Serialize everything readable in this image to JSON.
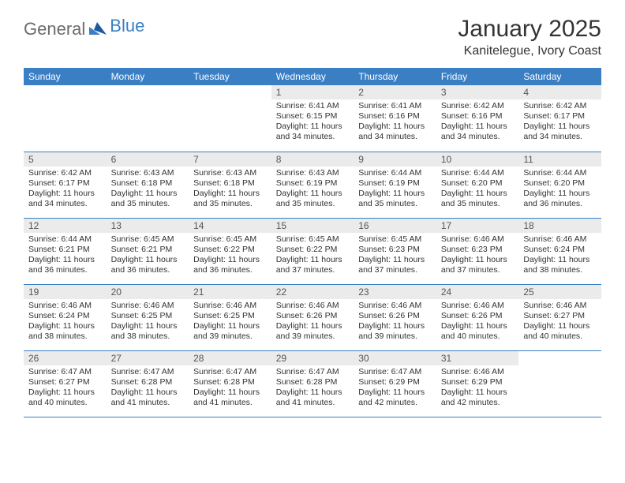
{
  "brand": {
    "text1": "General",
    "text2": "Blue",
    "color_gray": "#6b6b6b",
    "color_blue": "#3a7fc4"
  },
  "header": {
    "month_title": "January 2025",
    "location": "Kanitelegue, Ivory Coast"
  },
  "colors": {
    "header_bg": "#3a7fc4",
    "header_fg": "#ffffff",
    "daynum_bg": "#ebebeb",
    "border": "#3a7fc4",
    "text": "#333333",
    "background": "#ffffff"
  },
  "weekdays": [
    "Sunday",
    "Monday",
    "Tuesday",
    "Wednesday",
    "Thursday",
    "Friday",
    "Saturday"
  ],
  "weeks": [
    [
      null,
      null,
      null,
      {
        "n": "1",
        "sr": "6:41 AM",
        "ss": "6:15 PM",
        "dl": "11 hours and 34 minutes."
      },
      {
        "n": "2",
        "sr": "6:41 AM",
        "ss": "6:16 PM",
        "dl": "11 hours and 34 minutes."
      },
      {
        "n": "3",
        "sr": "6:42 AM",
        "ss": "6:16 PM",
        "dl": "11 hours and 34 minutes."
      },
      {
        "n": "4",
        "sr": "6:42 AM",
        "ss": "6:17 PM",
        "dl": "11 hours and 34 minutes."
      }
    ],
    [
      {
        "n": "5",
        "sr": "6:42 AM",
        "ss": "6:17 PM",
        "dl": "11 hours and 34 minutes."
      },
      {
        "n": "6",
        "sr": "6:43 AM",
        "ss": "6:18 PM",
        "dl": "11 hours and 35 minutes."
      },
      {
        "n": "7",
        "sr": "6:43 AM",
        "ss": "6:18 PM",
        "dl": "11 hours and 35 minutes."
      },
      {
        "n": "8",
        "sr": "6:43 AM",
        "ss": "6:19 PM",
        "dl": "11 hours and 35 minutes."
      },
      {
        "n": "9",
        "sr": "6:44 AM",
        "ss": "6:19 PM",
        "dl": "11 hours and 35 minutes."
      },
      {
        "n": "10",
        "sr": "6:44 AM",
        "ss": "6:20 PM",
        "dl": "11 hours and 35 minutes."
      },
      {
        "n": "11",
        "sr": "6:44 AM",
        "ss": "6:20 PM",
        "dl": "11 hours and 36 minutes."
      }
    ],
    [
      {
        "n": "12",
        "sr": "6:44 AM",
        "ss": "6:21 PM",
        "dl": "11 hours and 36 minutes."
      },
      {
        "n": "13",
        "sr": "6:45 AM",
        "ss": "6:21 PM",
        "dl": "11 hours and 36 minutes."
      },
      {
        "n": "14",
        "sr": "6:45 AM",
        "ss": "6:22 PM",
        "dl": "11 hours and 36 minutes."
      },
      {
        "n": "15",
        "sr": "6:45 AM",
        "ss": "6:22 PM",
        "dl": "11 hours and 37 minutes."
      },
      {
        "n": "16",
        "sr": "6:45 AM",
        "ss": "6:23 PM",
        "dl": "11 hours and 37 minutes."
      },
      {
        "n": "17",
        "sr": "6:46 AM",
        "ss": "6:23 PM",
        "dl": "11 hours and 37 minutes."
      },
      {
        "n": "18",
        "sr": "6:46 AM",
        "ss": "6:24 PM",
        "dl": "11 hours and 38 minutes."
      }
    ],
    [
      {
        "n": "19",
        "sr": "6:46 AM",
        "ss": "6:24 PM",
        "dl": "11 hours and 38 minutes."
      },
      {
        "n": "20",
        "sr": "6:46 AM",
        "ss": "6:25 PM",
        "dl": "11 hours and 38 minutes."
      },
      {
        "n": "21",
        "sr": "6:46 AM",
        "ss": "6:25 PM",
        "dl": "11 hours and 39 minutes."
      },
      {
        "n": "22",
        "sr": "6:46 AM",
        "ss": "6:26 PM",
        "dl": "11 hours and 39 minutes."
      },
      {
        "n": "23",
        "sr": "6:46 AM",
        "ss": "6:26 PM",
        "dl": "11 hours and 39 minutes."
      },
      {
        "n": "24",
        "sr": "6:46 AM",
        "ss": "6:26 PM",
        "dl": "11 hours and 40 minutes."
      },
      {
        "n": "25",
        "sr": "6:46 AM",
        "ss": "6:27 PM",
        "dl": "11 hours and 40 minutes."
      }
    ],
    [
      {
        "n": "26",
        "sr": "6:47 AM",
        "ss": "6:27 PM",
        "dl": "11 hours and 40 minutes."
      },
      {
        "n": "27",
        "sr": "6:47 AM",
        "ss": "6:28 PM",
        "dl": "11 hours and 41 minutes."
      },
      {
        "n": "28",
        "sr": "6:47 AM",
        "ss": "6:28 PM",
        "dl": "11 hours and 41 minutes."
      },
      {
        "n": "29",
        "sr": "6:47 AM",
        "ss": "6:28 PM",
        "dl": "11 hours and 41 minutes."
      },
      {
        "n": "30",
        "sr": "6:47 AM",
        "ss": "6:29 PM",
        "dl": "11 hours and 42 minutes."
      },
      {
        "n": "31",
        "sr": "6:46 AM",
        "ss": "6:29 PM",
        "dl": "11 hours and 42 minutes."
      },
      null
    ]
  ],
  "labels": {
    "sunrise": "Sunrise:",
    "sunset": "Sunset:",
    "daylight": "Daylight:"
  }
}
